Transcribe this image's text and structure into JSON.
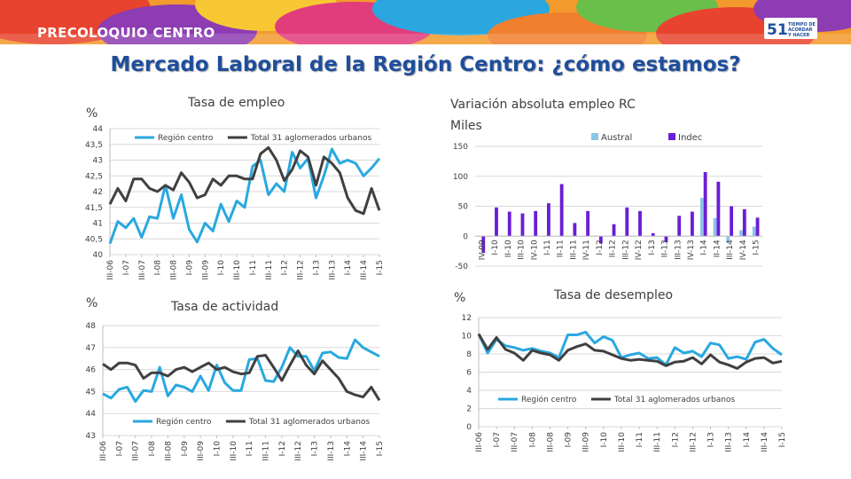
{
  "header": {
    "brand": "PRECOLOQUIO CENTRO",
    "logo_number": "51",
    "logo_text": "TIEMPO DE ACORDAR Y HACER"
  },
  "slide_title": "Mercado Laboral de la Región Centro: ¿cómo estamos?",
  "colors": {
    "region": "#29a8e0",
    "national": "#404040",
    "austral": "#8dc3e8",
    "indec": "#6a1ed6",
    "title": "#1f4e9d"
  },
  "chart_data": [
    {
      "id": "empleo",
      "type": "line",
      "title": "Tasa de empleo",
      "unit": "%",
      "ylim": [
        40,
        44
      ],
      "yticks": [
        "40",
        "40,5",
        "41",
        "41,5",
        "42",
        "42,5",
        "43",
        "43,5",
        "44"
      ],
      "xticks": [
        "III-06",
        "I-07",
        "III-07",
        "I-08",
        "III-08",
        "I-09",
        "III-09",
        "I-10",
        "III-10",
        "I-11",
        "III-11",
        "I-12",
        "III-12",
        "I-13",
        "III-13",
        "I-14",
        "III-14",
        "I-15"
      ],
      "legend": [
        "Región centro",
        "Total 31 aglomerados urbanos"
      ],
      "series": [
        {
          "name": "Región centro",
          "values": [
            40.35,
            41.05,
            40.85,
            41.15,
            40.55,
            41.2,
            41.15,
            42.2,
            41.15,
            41.9,
            40.8,
            40.4,
            41,
            40.75,
            41.6,
            41.05,
            41.7,
            41.5,
            42.8,
            43,
            41.9,
            42.25,
            42,
            43.25,
            42.75,
            43.05,
            41.8,
            42.5,
            43.35,
            42.9,
            43,
            42.9,
            42.5,
            42.75,
            43.05
          ]
        },
        {
          "name": "Total 31 aglomerados urbanos",
          "values": [
            41.6,
            42.1,
            41.7,
            42.4,
            42.4,
            42.1,
            42,
            42.2,
            42.05,
            42.6,
            42.3,
            41.8,
            41.9,
            42.4,
            42.2,
            42.5,
            42.5,
            42.4,
            42.4,
            43.2,
            43.4,
            43,
            42.35,
            42.7,
            43.3,
            43.1,
            42.2,
            43.1,
            42.9,
            42.6,
            41.8,
            41.4,
            41.3,
            42.1,
            41.4
          ]
        }
      ]
    },
    {
      "id": "variacion",
      "type": "bar",
      "title": "Variación absoluta empleo RC",
      "subtitle": "Miles",
      "ylim": [
        -50,
        150
      ],
      "yticks": [
        "-50",
        "0",
        "50",
        "100",
        "150"
      ],
      "categories": [
        "IV-09",
        "I-10",
        "II-10",
        "III-10",
        "IV-10",
        "I-11",
        "II-11",
        "III-11",
        "IV-11",
        "I-12",
        "II-12",
        "III-12",
        "IV-12",
        "I-13",
        "II-13",
        "III-13",
        "IV-13",
        "I-14",
        "II-14",
        "III-14",
        "IV-14",
        "I-15"
      ],
      "xticks": [
        "IV-09",
        "I-10",
        "II-10",
        "III-10",
        "IV-10",
        "I-11",
        "II-11",
        "III-11",
        "IV-11",
        "I-12",
        "II-12",
        "III-12",
        "IV-12",
        "I-13",
        "II-13",
        "III-13",
        "IV-13",
        "I-14",
        "II-14",
        "III-14",
        "IV-14",
        "I-15"
      ],
      "legend": [
        "Austral",
        "Indec"
      ],
      "series": [
        {
          "name": "Austral",
          "values": [
            0,
            0,
            0,
            0,
            0,
            0,
            0,
            0,
            0,
            0,
            0,
            0,
            0,
            0,
            0,
            0,
            0,
            64,
            30,
            -10,
            10,
            16
          ]
        },
        {
          "name": "Indec",
          "values": [
            -28,
            48,
            41,
            38,
            42,
            55,
            87,
            22,
            42,
            -12,
            20,
            48,
            42,
            5,
            -10,
            34,
            41,
            107,
            91,
            50,
            45,
            31
          ]
        }
      ]
    },
    {
      "id": "actividad",
      "type": "line",
      "title": "Tasa de actividad",
      "unit": "%",
      "ylim": [
        43,
        48
      ],
      "yticks": [
        "43",
        "44",
        "45",
        "46",
        "47",
        "48"
      ],
      "xticks": [
        "III-06",
        "I-07",
        "III-07",
        "I-08",
        "III-08",
        "I-09",
        "III-09",
        "I-10",
        "III-10",
        "I-11",
        "III-11",
        "I-12",
        "III-12",
        "I-13",
        "III-13",
        "I-14",
        "III-14",
        "I-15"
      ],
      "legend": [
        "Región centro",
        "Total 31 aglomerados urbanos"
      ],
      "series": [
        {
          "name": "Región centro",
          "values": [
            44.9,
            44.7,
            45.1,
            45.2,
            44.55,
            45.05,
            45,
            46.1,
            44.8,
            45.3,
            45.2,
            45,
            45.7,
            45.05,
            46.2,
            45.4,
            45.05,
            45.05,
            46.45,
            46.5,
            45.5,
            45.45,
            46.1,
            47,
            46.6,
            46.6,
            45.95,
            46.75,
            46.8,
            46.55,
            46.5,
            47.35,
            47,
            46.8,
            46.6
          ]
        },
        {
          "name": "Total 31 aglomerados urbanos",
          "values": [
            46.25,
            46,
            46.3,
            46.3,
            46.2,
            45.6,
            45.85,
            45.85,
            45.7,
            46,
            46.1,
            45.9,
            46.1,
            46.3,
            46,
            46.1,
            45.9,
            45.8,
            45.85,
            46.6,
            46.65,
            46.1,
            45.5,
            46.2,
            46.85,
            46.2,
            45.8,
            46.4,
            46,
            45.6,
            45,
            44.85,
            44.75,
            45.2,
            44.6
          ]
        }
      ]
    },
    {
      "id": "desempleo",
      "type": "line",
      "title": "Tasa de desempleo",
      "unit": "%",
      "ylim": [
        0,
        12
      ],
      "yticks": [
        "0",
        "2",
        "4",
        "6",
        "8",
        "10",
        "12"
      ],
      "xticks": [
        "III-06",
        "I-07",
        "III-07",
        "I-08",
        "III-08",
        "I-09",
        "III-09",
        "I-10",
        "III-10",
        "I-11",
        "III-11",
        "I-12",
        "III-12",
        "I-13",
        "III-13",
        "I-14",
        "III-14",
        "I-15"
      ],
      "legend": [
        "Región centro",
        "Total 31 aglomerados urbanos"
      ],
      "series": [
        {
          "name": "Región centro",
          "values": [
            10.2,
            8.1,
            9.6,
            8.9,
            8.7,
            8.4,
            8.6,
            8.3,
            8.1,
            7.6,
            10.1,
            10.1,
            10.4,
            9.2,
            9.9,
            9.5,
            7.6,
            7.9,
            8.1,
            7.5,
            7.6,
            6.8,
            8.7,
            8.1,
            8.3,
            7.7,
            9.2,
            9,
            7.5,
            7.7,
            7.4,
            9.3,
            9.6,
            8.6,
            7.9
          ]
        },
        {
          "name": "Total 31 aglomerados urbanos",
          "values": [
            10.2,
            8.5,
            9.8,
            8.5,
            8.1,
            7.3,
            8.4,
            8.1,
            7.9,
            7.3,
            8.4,
            8.8,
            9.1,
            8.4,
            8.3,
            7.9,
            7.5,
            7.3,
            7.4,
            7.3,
            7.2,
            6.7,
            7.1,
            7.2,
            7.6,
            6.9,
            7.9,
            7.1,
            6.8,
            6.4,
            7.1,
            7.5,
            7.6,
            7,
            7.2
          ]
        }
      ]
    }
  ]
}
